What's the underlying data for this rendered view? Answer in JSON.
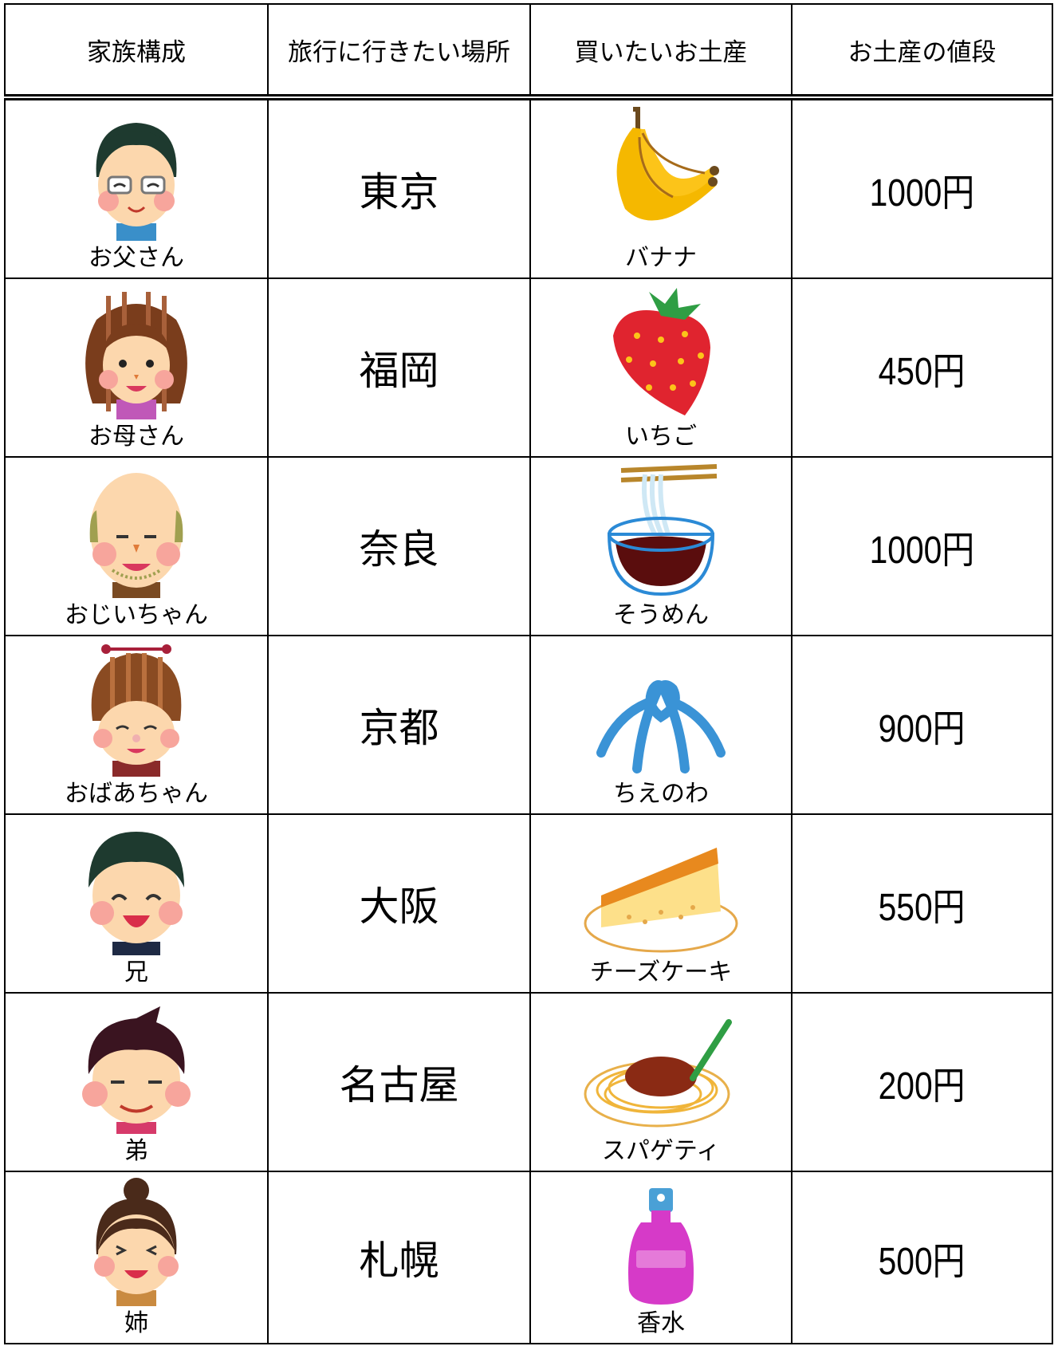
{
  "table": {
    "header": [
      "家族構成",
      "旅行に行きたい場所",
      "買いたいお土産",
      "お土産の値段"
    ],
    "rows": [
      [
        "お父さん",
        "東京",
        "バナナ",
        "1000円"
      ],
      [
        "お母さん",
        "福岡",
        "いちご",
        "450円"
      ],
      [
        "おじいちゃん",
        "奈良",
        "そうめん",
        "1000円"
      ],
      [
        "おばあちゃん",
        "京都",
        "ちえのわ",
        "900円"
      ],
      [
        "兄",
        "大阪",
        "チーズケーキ",
        "550円"
      ],
      [
        "弟",
        "名古屋",
        "スパゲティ",
        "200円"
      ],
      [
        "姉",
        "札幌",
        "香水",
        "500円"
      ]
    ]
  }
}
